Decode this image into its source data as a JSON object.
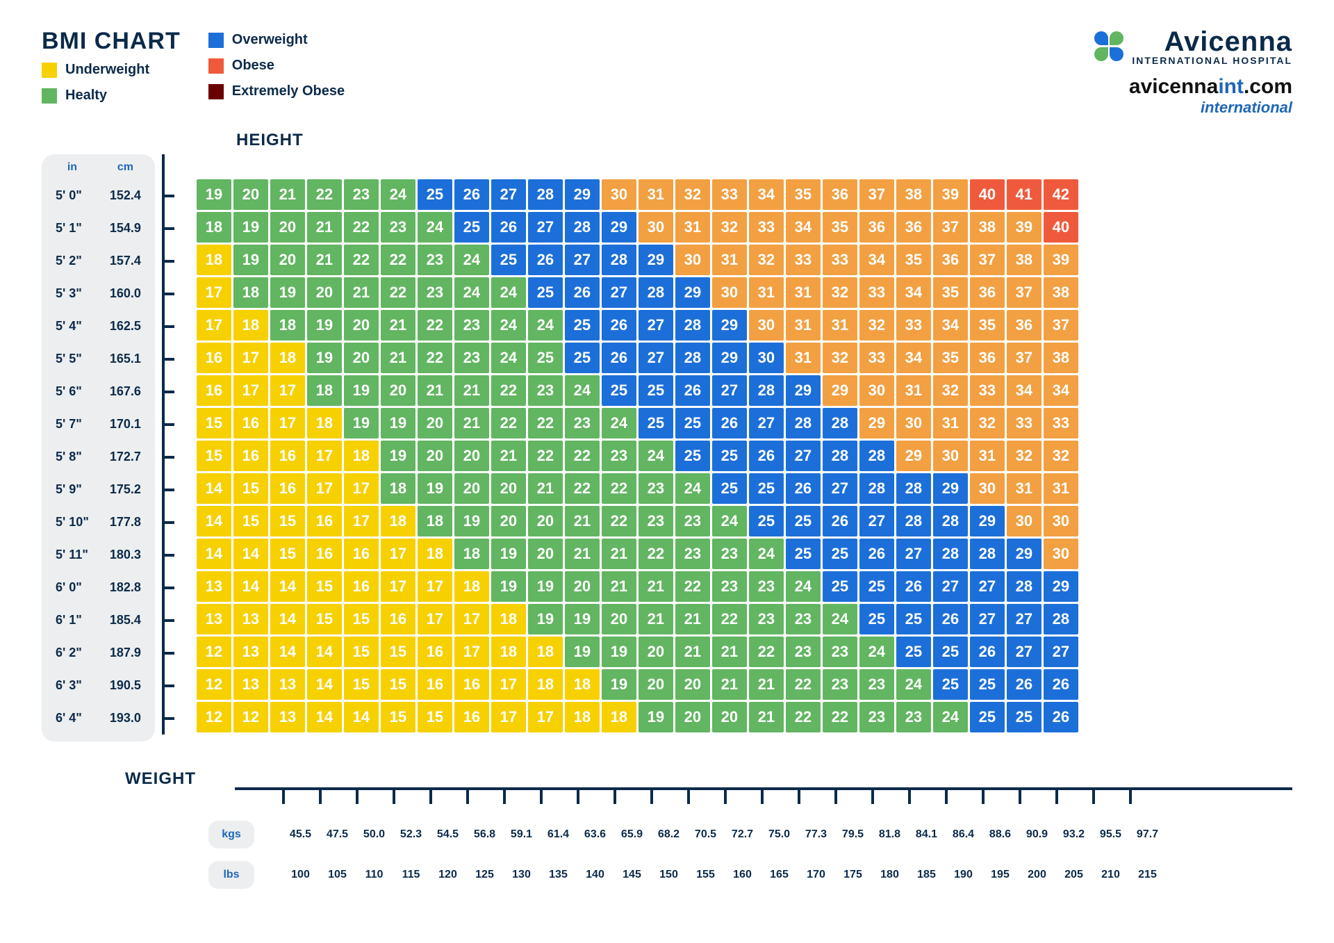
{
  "title": "BMI CHART",
  "legend": [
    {
      "label": "Underweight",
      "color": "#f7d000"
    },
    {
      "label": "Healty",
      "color": "#62b561"
    },
    {
      "label": "Overweight",
      "color": "#1c6fd8"
    },
    {
      "label": "Obese",
      "color": "#f05a3c"
    },
    {
      "label": "Extremely Obese",
      "color": "#6b0000"
    }
  ],
  "brand": {
    "name": "Avicenna",
    "sub": "INTERNATIONAL HOSPITAL",
    "url_prefix": "avicenna",
    "url_accent": "int",
    "url_suffix": ".com",
    "intl": "international",
    "logo_colors": [
      "#1c6fd8",
      "#62b561",
      "#62b561",
      "#1c6fd8"
    ]
  },
  "axis_labels": {
    "height": "HEIGHT",
    "weight": "WEIGHT"
  },
  "height": {
    "unit_in": "in",
    "unit_cm": "cm",
    "in": [
      "5' 0\"",
      "5' 1\"",
      "5' 2\"",
      "5' 3\"",
      "5' 4\"",
      "5' 5\"",
      "5' 6\"",
      "5' 7\"",
      "5' 8\"",
      "5' 9\"",
      "5' 10\"",
      "5' 11\"",
      "6' 0\"",
      "6' 1\"",
      "6' 2\"",
      "6' 3\"",
      "6' 4\""
    ],
    "cm": [
      "152.4",
      "154.9",
      "157.4",
      "160.0",
      "162.5",
      "165.1",
      "167.6",
      "170.1",
      "172.7",
      "175.2",
      "177.8",
      "180.3",
      "182.8",
      "185.4",
      "187.9",
      "190.5",
      "193.0"
    ]
  },
  "weight": {
    "unit_kgs": "kgs",
    "unit_lbs": "lbs",
    "kgs": [
      "45.5",
      "47.5",
      "50.0",
      "52.3",
      "54.5",
      "56.8",
      "59.1",
      "61.4",
      "63.6",
      "65.9",
      "68.2",
      "70.5",
      "72.7",
      "75.0",
      "77.3",
      "79.5",
      "81.8",
      "84.1",
      "86.4",
      "88.6",
      "90.9",
      "93.2",
      "95.5",
      "97.7"
    ],
    "lbs": [
      "100",
      "105",
      "110",
      "115",
      "120",
      "125",
      "130",
      "135",
      "140",
      "145",
      "150",
      "155",
      "160",
      "165",
      "170",
      "175",
      "180",
      "185",
      "190",
      "195",
      "200",
      "205",
      "210",
      "215"
    ]
  },
  "colors": {
    "underweight": "#f7d000",
    "healthy": "#62b561",
    "overweight": "#1c6fd8",
    "obese": "#f2a042",
    "extreme": "#f05a3c",
    "text": "#0b2a4a",
    "bg": "#ffffff"
  },
  "grid": {
    "type": "heatmap",
    "values": [
      [
        19,
        20,
        21,
        22,
        23,
        24,
        25,
        26,
        27,
        28,
        29,
        30,
        31,
        32,
        33,
        34,
        35,
        36,
        37,
        38,
        39,
        40,
        41,
        42
      ],
      [
        18,
        19,
        20,
        21,
        22,
        23,
        24,
        25,
        26,
        27,
        28,
        29,
        30,
        31,
        32,
        33,
        34,
        35,
        36,
        36,
        37,
        38,
        39,
        40
      ],
      [
        18,
        19,
        20,
        21,
        22,
        22,
        23,
        24,
        25,
        26,
        27,
        28,
        29,
        30,
        31,
        32,
        33,
        33,
        34,
        35,
        36,
        37,
        38,
        39
      ],
      [
        17,
        18,
        19,
        20,
        21,
        22,
        23,
        24,
        24,
        25,
        26,
        27,
        28,
        29,
        30,
        31,
        31,
        32,
        33,
        34,
        35,
        36,
        37,
        38
      ],
      [
        17,
        18,
        18,
        19,
        20,
        21,
        22,
        23,
        24,
        24,
        25,
        26,
        27,
        28,
        29,
        30,
        31,
        31,
        32,
        33,
        34,
        35,
        36,
        37
      ],
      [
        16,
        17,
        18,
        19,
        20,
        21,
        22,
        23,
        24,
        25,
        25,
        26,
        27,
        28,
        29,
        30,
        31,
        32,
        33,
        34,
        35,
        36,
        37,
        38
      ],
      [
        16,
        17,
        17,
        18,
        19,
        20,
        21,
        21,
        22,
        23,
        24,
        25,
        25,
        26,
        27,
        28,
        29,
        29,
        30,
        31,
        32,
        33,
        34,
        34
      ],
      [
        15,
        16,
        17,
        18,
        19,
        19,
        20,
        21,
        22,
        22,
        23,
        24,
        25,
        25,
        26,
        27,
        28,
        28,
        29,
        30,
        31,
        32,
        33,
        33
      ],
      [
        15,
        16,
        16,
        17,
        18,
        19,
        20,
        20,
        21,
        22,
        22,
        23,
        24,
        25,
        25,
        26,
        27,
        28,
        28,
        29,
        30,
        31,
        32,
        32
      ],
      [
        14,
        15,
        16,
        17,
        17,
        18,
        19,
        20,
        20,
        21,
        22,
        22,
        23,
        24,
        25,
        25,
        26,
        27,
        28,
        28,
        29,
        30,
        31,
        31
      ],
      [
        14,
        15,
        15,
        16,
        17,
        18,
        18,
        19,
        20,
        20,
        21,
        22,
        23,
        23,
        24,
        25,
        25,
        26,
        27,
        28,
        28,
        29,
        30,
        30
      ],
      [
        14,
        14,
        15,
        16,
        16,
        17,
        18,
        18,
        19,
        20,
        21,
        21,
        22,
        23,
        23,
        24,
        25,
        25,
        26,
        27,
        28,
        28,
        29,
        30
      ],
      [
        13,
        14,
        14,
        15,
        16,
        17,
        17,
        18,
        19,
        19,
        20,
        21,
        21,
        22,
        23,
        23,
        24,
        25,
        25,
        26,
        27,
        27,
        28,
        29
      ],
      [
        13,
        13,
        14,
        15,
        15,
        16,
        17,
        17,
        18,
        19,
        19,
        20,
        21,
        21,
        22,
        23,
        23,
        24,
        25,
        25,
        26,
        27,
        27,
        28
      ],
      [
        12,
        13,
        14,
        14,
        15,
        15,
        16,
        17,
        18,
        18,
        19,
        19,
        20,
        21,
        21,
        22,
        23,
        23,
        24,
        25,
        25,
        26,
        27,
        27
      ],
      [
        12,
        13,
        13,
        14,
        15,
        15,
        16,
        16,
        17,
        18,
        18,
        19,
        20,
        20,
        21,
        21,
        22,
        23,
        23,
        24,
        25,
        25,
        26,
        26
      ],
      [
        12,
        12,
        13,
        14,
        14,
        15,
        15,
        16,
        17,
        17,
        18,
        18,
        19,
        20,
        20,
        21,
        22,
        22,
        23,
        23,
        24,
        25,
        25,
        26
      ]
    ],
    "color_rows": [
      "hhhhhhwwwwwooooooooooeee",
      "hhhhhhhwwwwwoooooooooooe",
      "yhhhhhhhwwwwwooooooooooo",
      "yhhhhhhhhwwwwwoooooooooo",
      "yyhhhhhhhhwwwwwooooooooo",
      "yyyhhhhhhhwwwwwwoooooooo",
      "yyyhhhhhhhhwwwwwwooooooo",
      "yyyyhhhhhhhhwwwwwwoooooo",
      "yyyyyhhhhhhhhwwwwwwooooo",
      "yyyyyhhhhhhhhhwwwwwwwooo",
      "yyyyyyhhhhhhhhhwwwwwwwoo",
      "yyyyyyyhhhhhhhhhwwwwwwwo",
      "yyyyyyyyhhhhhhhhhwwwwwww",
      "yyyyyyyyyhhhhhhhhhwwwwww",
      "yyyyyyyyyyhhhhhhhhhwwwww",
      "yyyyyyyyyyyhhhhhhhhhwwww",
      "yyyyyyyyyyyyhhhhhhhhhwww"
    ],
    "color_map": {
      "y": "#f7d000",
      "h": "#62b561",
      "w": "#1c6fd8",
      "o": "#f2a042",
      "e": "#f05a3c"
    }
  }
}
